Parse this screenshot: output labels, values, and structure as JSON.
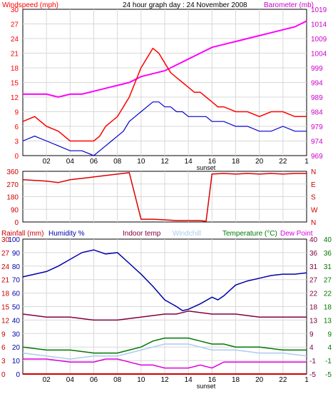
{
  "header": {
    "title": "24 hour graph day : 24 November 2008",
    "left_label": "Windspeed (mph)",
    "right_label": "Barometer (mb)"
  },
  "x_axis": {
    "ticks": [
      "02",
      "04",
      "06",
      "08",
      "10",
      "12",
      "14",
      "16",
      "18",
      "20",
      "22"
    ],
    "end_tick": "1",
    "sunset_label": "sunset"
  },
  "colors": {
    "wind_gust": "#ff0000",
    "wind_avg": "#0000cc",
    "barometer": "#ff00ff",
    "direction": "#dd0000",
    "humidity": "#0000aa",
    "indoor": "#800040",
    "windchill": "#aaccee",
    "temperature": "#007700",
    "dewpoint": "#dd00dd",
    "rain": "#cc0000",
    "grid": "#d8d8d8"
  },
  "chart_data": [
    {
      "type": "line",
      "title": "24 hour graph day : 24 November 2008",
      "x_ticks": [
        "02",
        "04",
        "06",
        "08",
        "10",
        "12",
        "14",
        "16",
        "18",
        "20",
        "22",
        "1"
      ],
      "ylabel": "Windspeed (mph)",
      "y_ticks": [
        0,
        3,
        6,
        9,
        12,
        15,
        18,
        21,
        24,
        27,
        30
      ],
      "ylim": [
        0,
        30
      ],
      "y2label": "Barometer (mb)",
      "y2_ticks": [
        969,
        974,
        979,
        984,
        989,
        994,
        999,
        1004,
        1009,
        1014,
        1019
      ],
      "y2lim": [
        969,
        1019
      ],
      "series": [
        {
          "name": "Windspeed (mph)",
          "axis": "left",
          "x": [
            0,
            1,
            2,
            3,
            4,
            5,
            6,
            6.5,
            7,
            7.5,
            8,
            8.5,
            9,
            9.5,
            10,
            10.5,
            11,
            11.5,
            12,
            12.5,
            13,
            13.5,
            14,
            14.5,
            15,
            15.5,
            16,
            16.5,
            17,
            18,
            19,
            20,
            21,
            22,
            23,
            24
          ],
          "values": [
            7,
            8,
            6,
            5,
            3,
            3,
            3,
            4,
            6,
            7,
            8,
            10,
            12,
            15,
            18,
            20,
            22,
            21,
            19,
            17,
            16,
            15,
            14,
            13,
            13,
            12,
            11,
            10,
            10,
            9,
            9,
            8,
            9,
            9,
            8,
            8
          ]
        },
        {
          "name": "Wind average",
          "axis": "left",
          "x": [
            0,
            1,
            2,
            3,
            4,
            5,
            6,
            6.5,
            7,
            7.5,
            8,
            8.5,
            9,
            9.5,
            10,
            10.5,
            11,
            11.5,
            12,
            12.5,
            13,
            13.5,
            14,
            14.5,
            15,
            15.5,
            16,
            16.5,
            17,
            18,
            19,
            20,
            21,
            22,
            23,
            24
          ],
          "values": [
            3,
            4,
            3,
            2,
            1,
            1,
            0,
            1,
            2,
            3,
            4,
            5,
            7,
            8,
            9,
            10,
            11,
            11,
            10,
            10,
            9,
            9,
            8,
            8,
            8,
            8,
            7,
            7,
            7,
            6,
            6,
            5,
            5,
            6,
            5,
            5
          ]
        },
        {
          "name": "Barometer (mb)",
          "axis": "right",
          "x": [
            0,
            1,
            2,
            3,
            4,
            5,
            6,
            7,
            8,
            9,
            10,
            11,
            12,
            13,
            14,
            15,
            16,
            17,
            18,
            19,
            20,
            21,
            22,
            23,
            24
          ],
          "values": [
            990,
            990,
            990,
            989,
            990,
            990,
            991,
            992,
            993,
            994,
            996,
            997,
            998,
            1000,
            1002,
            1004,
            1006,
            1007,
            1008,
            1009,
            1010,
            1011,
            1012,
            1013,
            1015
          ]
        }
      ]
    },
    {
      "type": "line",
      "title": "",
      "x_ticks": [
        "02",
        "04",
        "06",
        "08",
        "10",
        "12",
        "14",
        "16",
        "18",
        "20",
        "22",
        "1"
      ],
      "y_ticks": [
        0,
        90,
        180,
        270,
        360
      ],
      "ylim": [
        0,
        360
      ],
      "right_ticks": [
        "N",
        "W",
        "S",
        "E",
        "N"
      ],
      "series": [
        {
          "name": "Wind direction",
          "x": [
            0,
            2,
            3,
            4,
            5,
            6,
            7,
            8,
            9,
            10,
            11,
            12,
            13,
            14,
            15,
            15.5,
            16,
            17,
            18,
            19,
            20,
            21,
            22,
            23,
            24
          ],
          "values": [
            300,
            290,
            280,
            300,
            310,
            320,
            330,
            340,
            350,
            20,
            20,
            15,
            10,
            10,
            10,
            5,
            340,
            345,
            340,
            345,
            340,
            345,
            340,
            345,
            345
          ]
        }
      ]
    },
    {
      "type": "line",
      "title": "",
      "x_ticks": [
        "02",
        "04",
        "06",
        "08",
        "10",
        "12",
        "14",
        "16",
        "18",
        "20",
        "22",
        "1"
      ],
      "left_labels": [
        "Rainfall (mm)",
        "Humidity %"
      ],
      "rain_ticks": [
        0,
        3,
        6,
        9,
        12,
        15,
        18,
        21,
        24,
        27,
        30
      ],
      "ylim": [
        0,
        100
      ],
      "y_ticks": [
        0,
        10,
        20,
        30,
        40,
        50,
        60,
        70,
        80,
        90,
        100
      ],
      "right_labels": [
        "Indoor temp",
        "Windchill",
        "Temperature (°C)",
        "Dew Point"
      ],
      "y2_outer_ticks": [
        -5,
        -1,
        4,
        9,
        13,
        18,
        22,
        27,
        31,
        36,
        40
      ],
      "y2_inner_ticks": [
        -5,
        -1,
        4,
        9,
        13,
        18,
        22,
        27,
        31,
        36,
        40
      ],
      "y2lim": [
        -5,
        40
      ],
      "series": [
        {
          "name": "Humidity %",
          "axis": "left",
          "x": [
            0,
            1,
            2,
            3,
            4,
            5,
            6,
            7,
            8,
            9,
            10,
            11,
            12,
            13,
            13.5,
            14,
            15,
            16,
            16.5,
            17,
            18,
            19,
            20,
            21,
            22,
            23,
            24
          ],
          "values": [
            72,
            74,
            76,
            80,
            85,
            90,
            92,
            89,
            90,
            82,
            74,
            65,
            55,
            50,
            47,
            48,
            52,
            57,
            55,
            58,
            66,
            69,
            71,
            73,
            74,
            74,
            75
          ]
        },
        {
          "name": "Indoor temp",
          "axis": "right",
          "x": [
            0,
            2,
            4,
            6,
            8,
            10,
            12,
            13,
            14,
            16,
            18,
            20,
            22,
            24
          ],
          "values": [
            15,
            14,
            14,
            13,
            13,
            14,
            15,
            15,
            16,
            15,
            15,
            14,
            14,
            14
          ]
        },
        {
          "name": "Windchill",
          "axis": "right",
          "x": [
            0,
            2,
            4,
            6,
            8,
            9,
            10,
            11,
            12,
            13,
            14,
            15,
            16,
            17,
            18,
            20,
            22,
            24
          ],
          "values": [
            2,
            1,
            0,
            1,
            1,
            2,
            3,
            4,
            5,
            5,
            5,
            4,
            3,
            3,
            3,
            2,
            2,
            1
          ]
        },
        {
          "name": "Temperature (°C)",
          "axis": "right",
          "x": [
            0,
            2,
            4,
            6,
            8,
            9,
            10,
            11,
            12,
            13,
            14,
            15,
            16,
            17,
            18,
            20,
            22,
            24
          ],
          "values": [
            4,
            3,
            3,
            2,
            2,
            3,
            4,
            6,
            7,
            7,
            7,
            6,
            5,
            5,
            4,
            4,
            3,
            3
          ]
        },
        {
          "name": "Dew Point",
          "axis": "right",
          "x": [
            0,
            2,
            4,
            6,
            7,
            8,
            9,
            10,
            11,
            12,
            13,
            14,
            15,
            16,
            17,
            18,
            20,
            22,
            24
          ],
          "values": [
            0,
            0,
            -1,
            -1,
            0,
            0,
            -1,
            -2,
            -2,
            -3,
            -3,
            -3,
            -2,
            -3,
            -1,
            -1,
            -1,
            -1,
            -1
          ]
        },
        {
          "name": "Rainfall (mm)",
          "axis": "rain",
          "x": [
            0,
            24
          ],
          "values": [
            0,
            0
          ]
        }
      ]
    }
  ]
}
